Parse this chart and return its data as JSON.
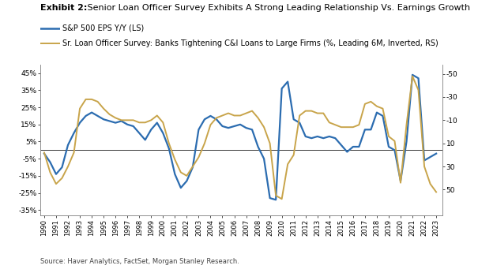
{
  "title_bold": "Exhibit 2:",
  "title_rest": " Senior Loan Officer Survey Exhibits A Strong Leading Relationship Vs. Earnings Growth",
  "source": "Source: Haver Analytics, FactSet, Morgan Stanley Research.",
  "legend1": "S&P 500 EPS Y/Y (LS)",
  "legend2": "Sr. Loan Officer Survey: Banks Tightening C&I Loans to Large Firms (%, Leading 6M, Inverted, RS)",
  "color_blue": "#2B6CB0",
  "color_gold": "#C8A44A",
  "color_hline": "#333333",
  "ylim_left": [
    -38,
    50
  ],
  "ylim_right": [
    72,
    -58
  ],
  "yticks_left": [
    -35,
    -25,
    -15,
    -5,
    5,
    15,
    25,
    35,
    45
  ],
  "ytick_labels_left": [
    "-35%",
    "-25%",
    "-15%",
    "-5%",
    "5%",
    "15%",
    "25%",
    "35%",
    "45%"
  ],
  "yticks_right": [
    50,
    30,
    10,
    -10,
    -30,
    -50
  ],
  "ytick_labels_right": [
    "50",
    "30",
    "10",
    "-10",
    "-30",
    "-50"
  ],
  "years": [
    1990,
    1990.5,
    1991,
    1991.5,
    1992,
    1992.5,
    1993,
    1993.5,
    1994,
    1994.5,
    1995,
    1995.5,
    1996,
    1996.5,
    1997,
    1997.5,
    1998,
    1998.5,
    1999,
    1999.5,
    2000,
    2000.5,
    2001,
    2001.5,
    2002,
    2002.5,
    2003,
    2003.5,
    2004,
    2004.5,
    2005,
    2005.5,
    2006,
    2006.5,
    2007,
    2007.5,
    2008,
    2008.5,
    2009,
    2009.5,
    2010,
    2010.5,
    2011,
    2011.5,
    2012,
    2012.5,
    2013,
    2013.5,
    2014,
    2014.5,
    2015,
    2015.5,
    2016,
    2016.5,
    2017,
    2017.5,
    2018,
    2018.5,
    2019,
    2019.5,
    2020,
    2020.5,
    2021,
    2021.5,
    2022,
    2022.5,
    2023
  ],
  "eps_yy": [
    -2,
    -7,
    -14,
    -10,
    3,
    10,
    16,
    20,
    22,
    20,
    18,
    17,
    16,
    17,
    15,
    14,
    10,
    6,
    12,
    16,
    10,
    1,
    -14,
    -22,
    -18,
    -10,
    12,
    18,
    20,
    18,
    14,
    13,
    14,
    15,
    13,
    12,
    2,
    -5,
    -28,
    -29,
    36,
    40,
    18,
    16,
    8,
    7,
    8,
    7,
    8,
    7,
    3,
    -1,
    2,
    2,
    12,
    12,
    22,
    20,
    2,
    0,
    -18,
    5,
    44,
    42,
    -6,
    -4,
    -2
  ],
  "loan_officer": [
    18,
    35,
    45,
    40,
    30,
    18,
    -20,
    -28,
    -28,
    -26,
    -20,
    -15,
    -12,
    -10,
    -10,
    -10,
    -8,
    -8,
    -10,
    -14,
    -8,
    10,
    24,
    35,
    38,
    30,
    22,
    10,
    -6,
    -12,
    -14,
    -16,
    -14,
    -14,
    -16,
    -18,
    -12,
    -4,
    10,
    55,
    58,
    28,
    20,
    -14,
    -18,
    -18,
    -16,
    -16,
    -8,
    -6,
    -4,
    -4,
    -4,
    -6,
    -24,
    -26,
    -22,
    -20,
    4,
    8,
    44,
    -6,
    -48,
    -36,
    30,
    45,
    52
  ],
  "hline_y": 0,
  "xtick_years": [
    1990,
    1991,
    1992,
    1993,
    1994,
    1995,
    1996,
    1997,
    1998,
    1999,
    2000,
    2001,
    2002,
    2003,
    2004,
    2005,
    2006,
    2007,
    2008,
    2009,
    2010,
    2011,
    2012,
    2013,
    2014,
    2015,
    2016,
    2017,
    2018,
    2019,
    2020,
    2021,
    2022,
    2023
  ]
}
